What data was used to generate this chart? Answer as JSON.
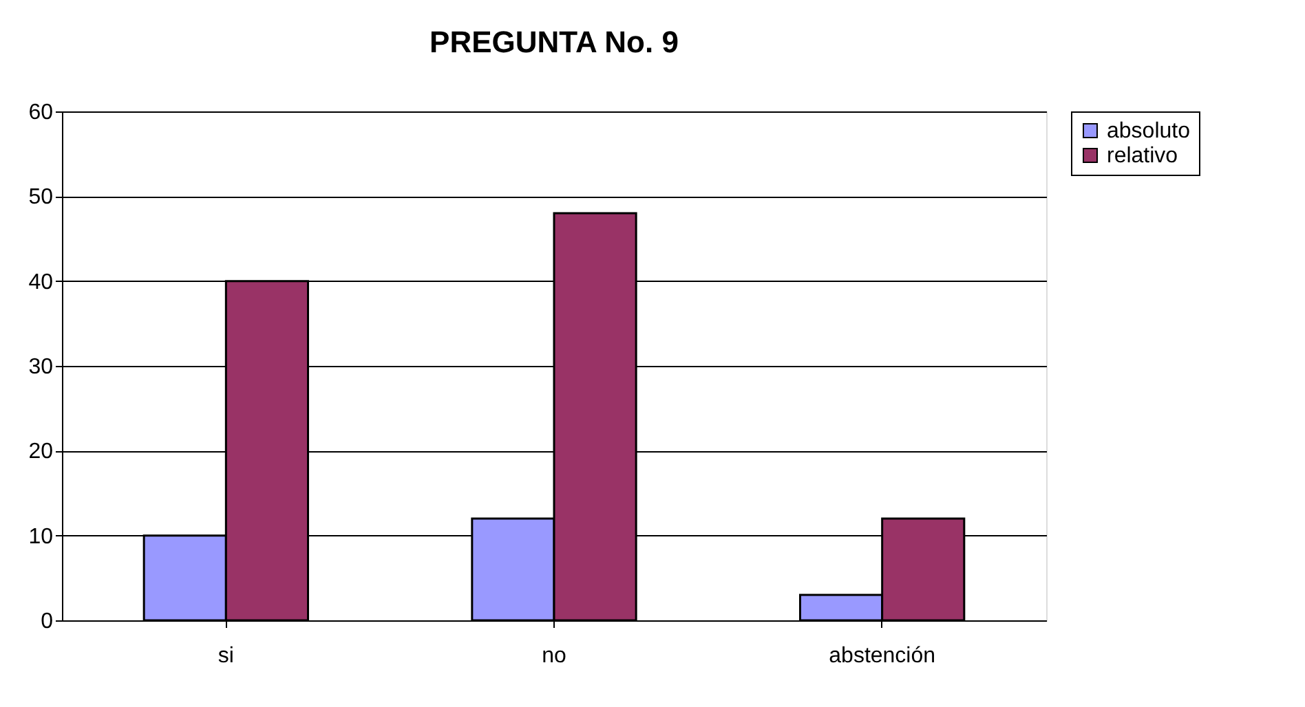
{
  "chart_data": {
    "type": "bar",
    "title": "PREGUNTA No. 9",
    "categories": [
      "si",
      "no",
      "abstención"
    ],
    "series": [
      {
        "name": "absoluto",
        "color": "#9999ff",
        "values": [
          10,
          12,
          3
        ]
      },
      {
        "name": "relativo",
        "color": "#993366",
        "values": [
          40,
          48,
          12
        ]
      }
    ],
    "ylim": [
      0,
      60
    ],
    "yticks": [
      0,
      10,
      20,
      30,
      40,
      50,
      60
    ],
    "grid": "y",
    "legend": "right"
  }
}
